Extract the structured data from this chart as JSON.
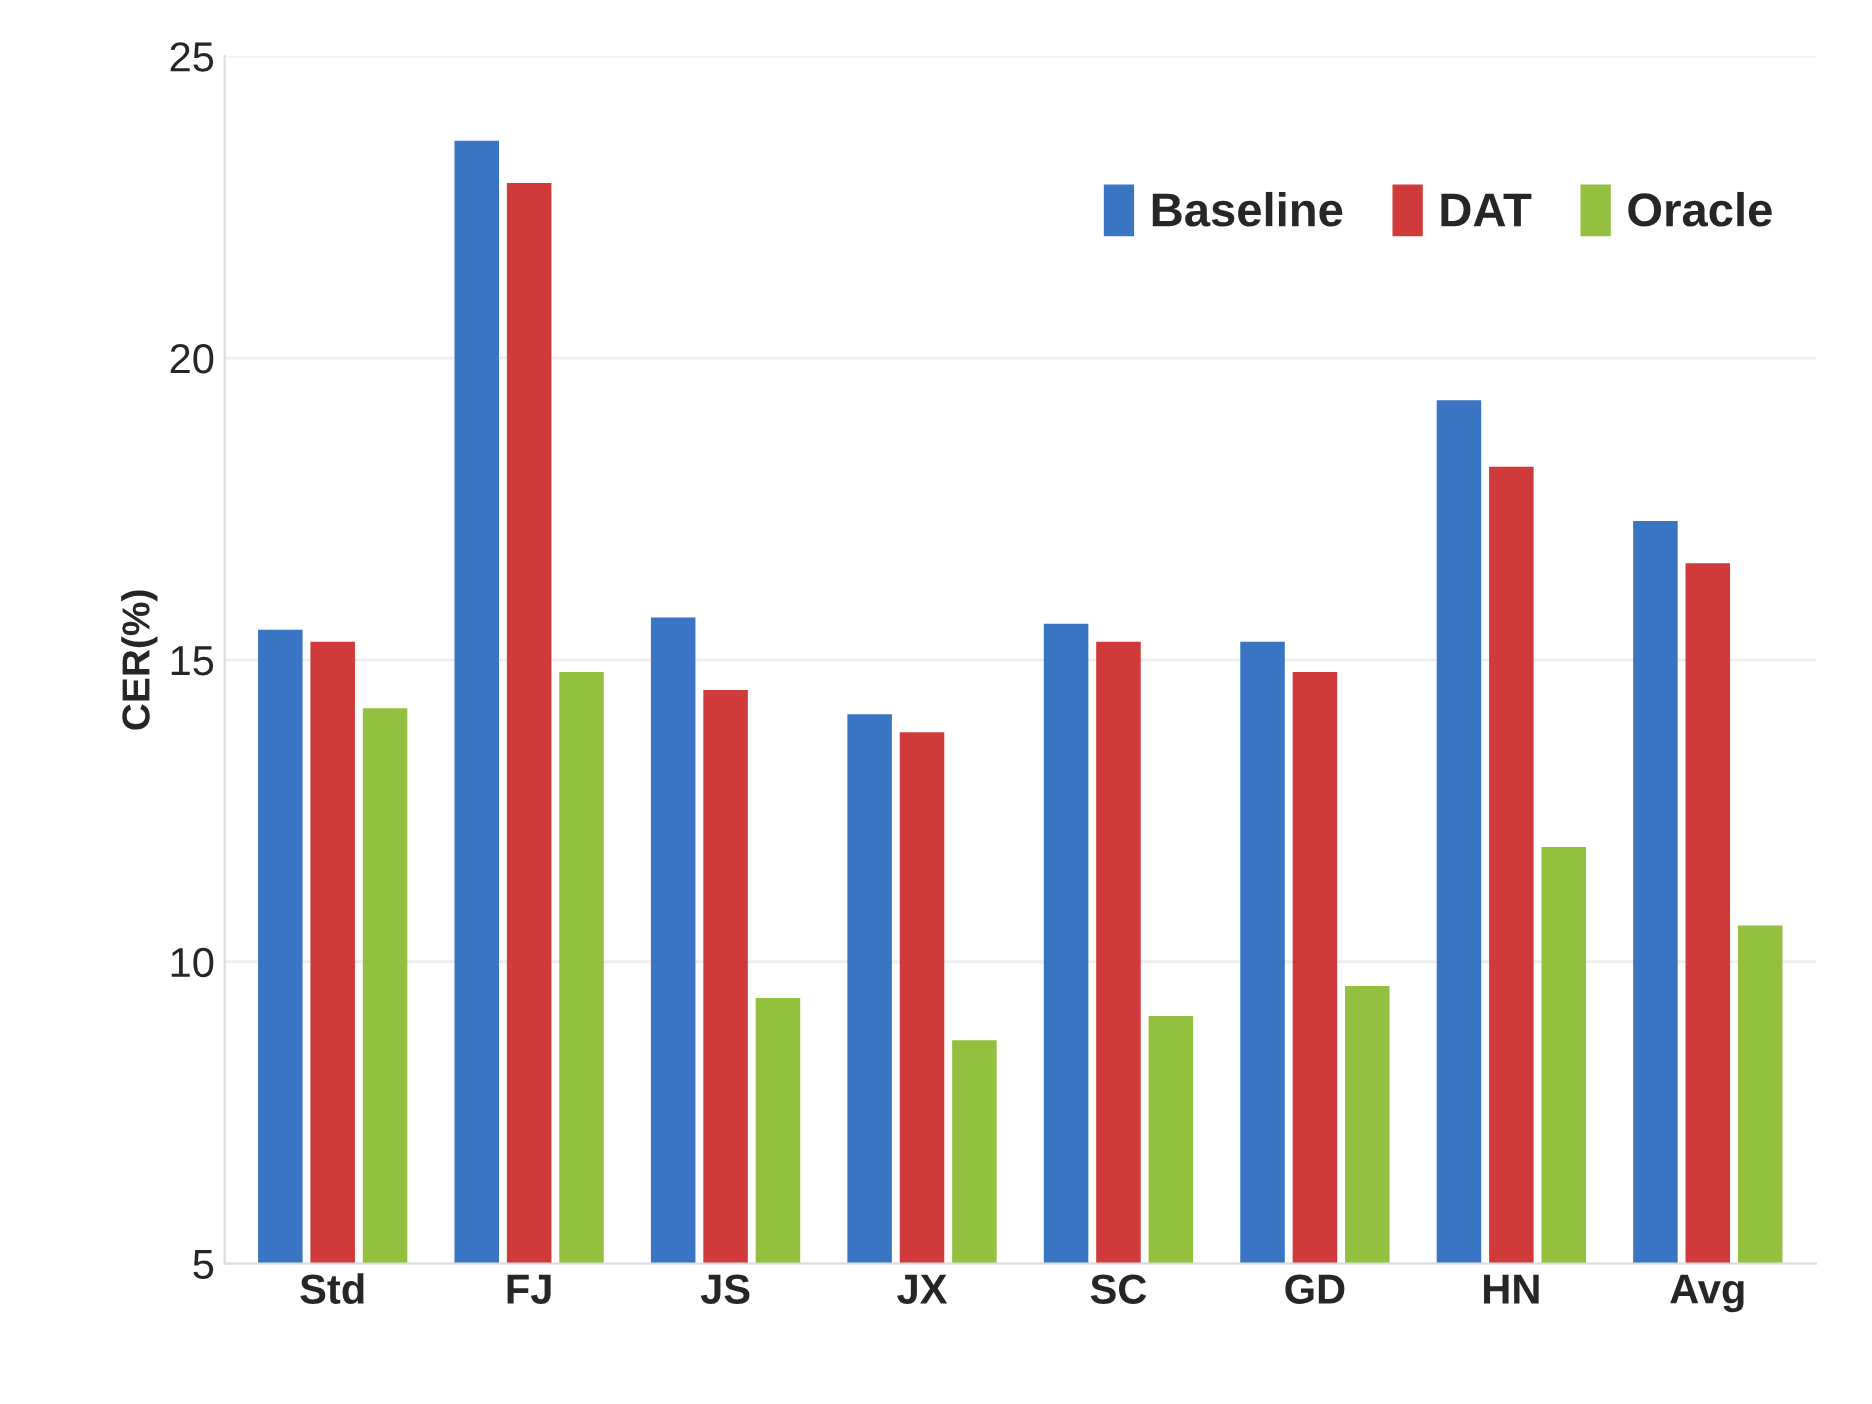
{
  "chart_data": {
    "type": "bar",
    "ylabel": "CER(%)",
    "categories": [
      "Std",
      "FJ",
      "JS",
      "JX",
      "SC",
      "GD",
      "HN",
      "Avg"
    ],
    "series": [
      {
        "name": "Baseline",
        "color": "#3a75c4",
        "values": [
          15.5,
          23.6,
          15.7,
          14.1,
          15.6,
          15.3,
          19.3,
          17.3
        ]
      },
      {
        "name": "DAT",
        "color": "#d03a3a",
        "values": [
          15.3,
          22.9,
          14.5,
          13.8,
          15.3,
          14.8,
          18.2,
          16.6
        ]
      },
      {
        "name": "Oracle",
        "color": "#94c040",
        "values": [
          14.2,
          14.8,
          9.4,
          8.7,
          9.1,
          9.6,
          11.9,
          10.6
        ]
      }
    ],
    "ylim": [
      5,
      25
    ],
    "yticks": [
      5,
      10,
      15,
      20,
      25
    ],
    "grid": "y",
    "legend": "top right"
  }
}
